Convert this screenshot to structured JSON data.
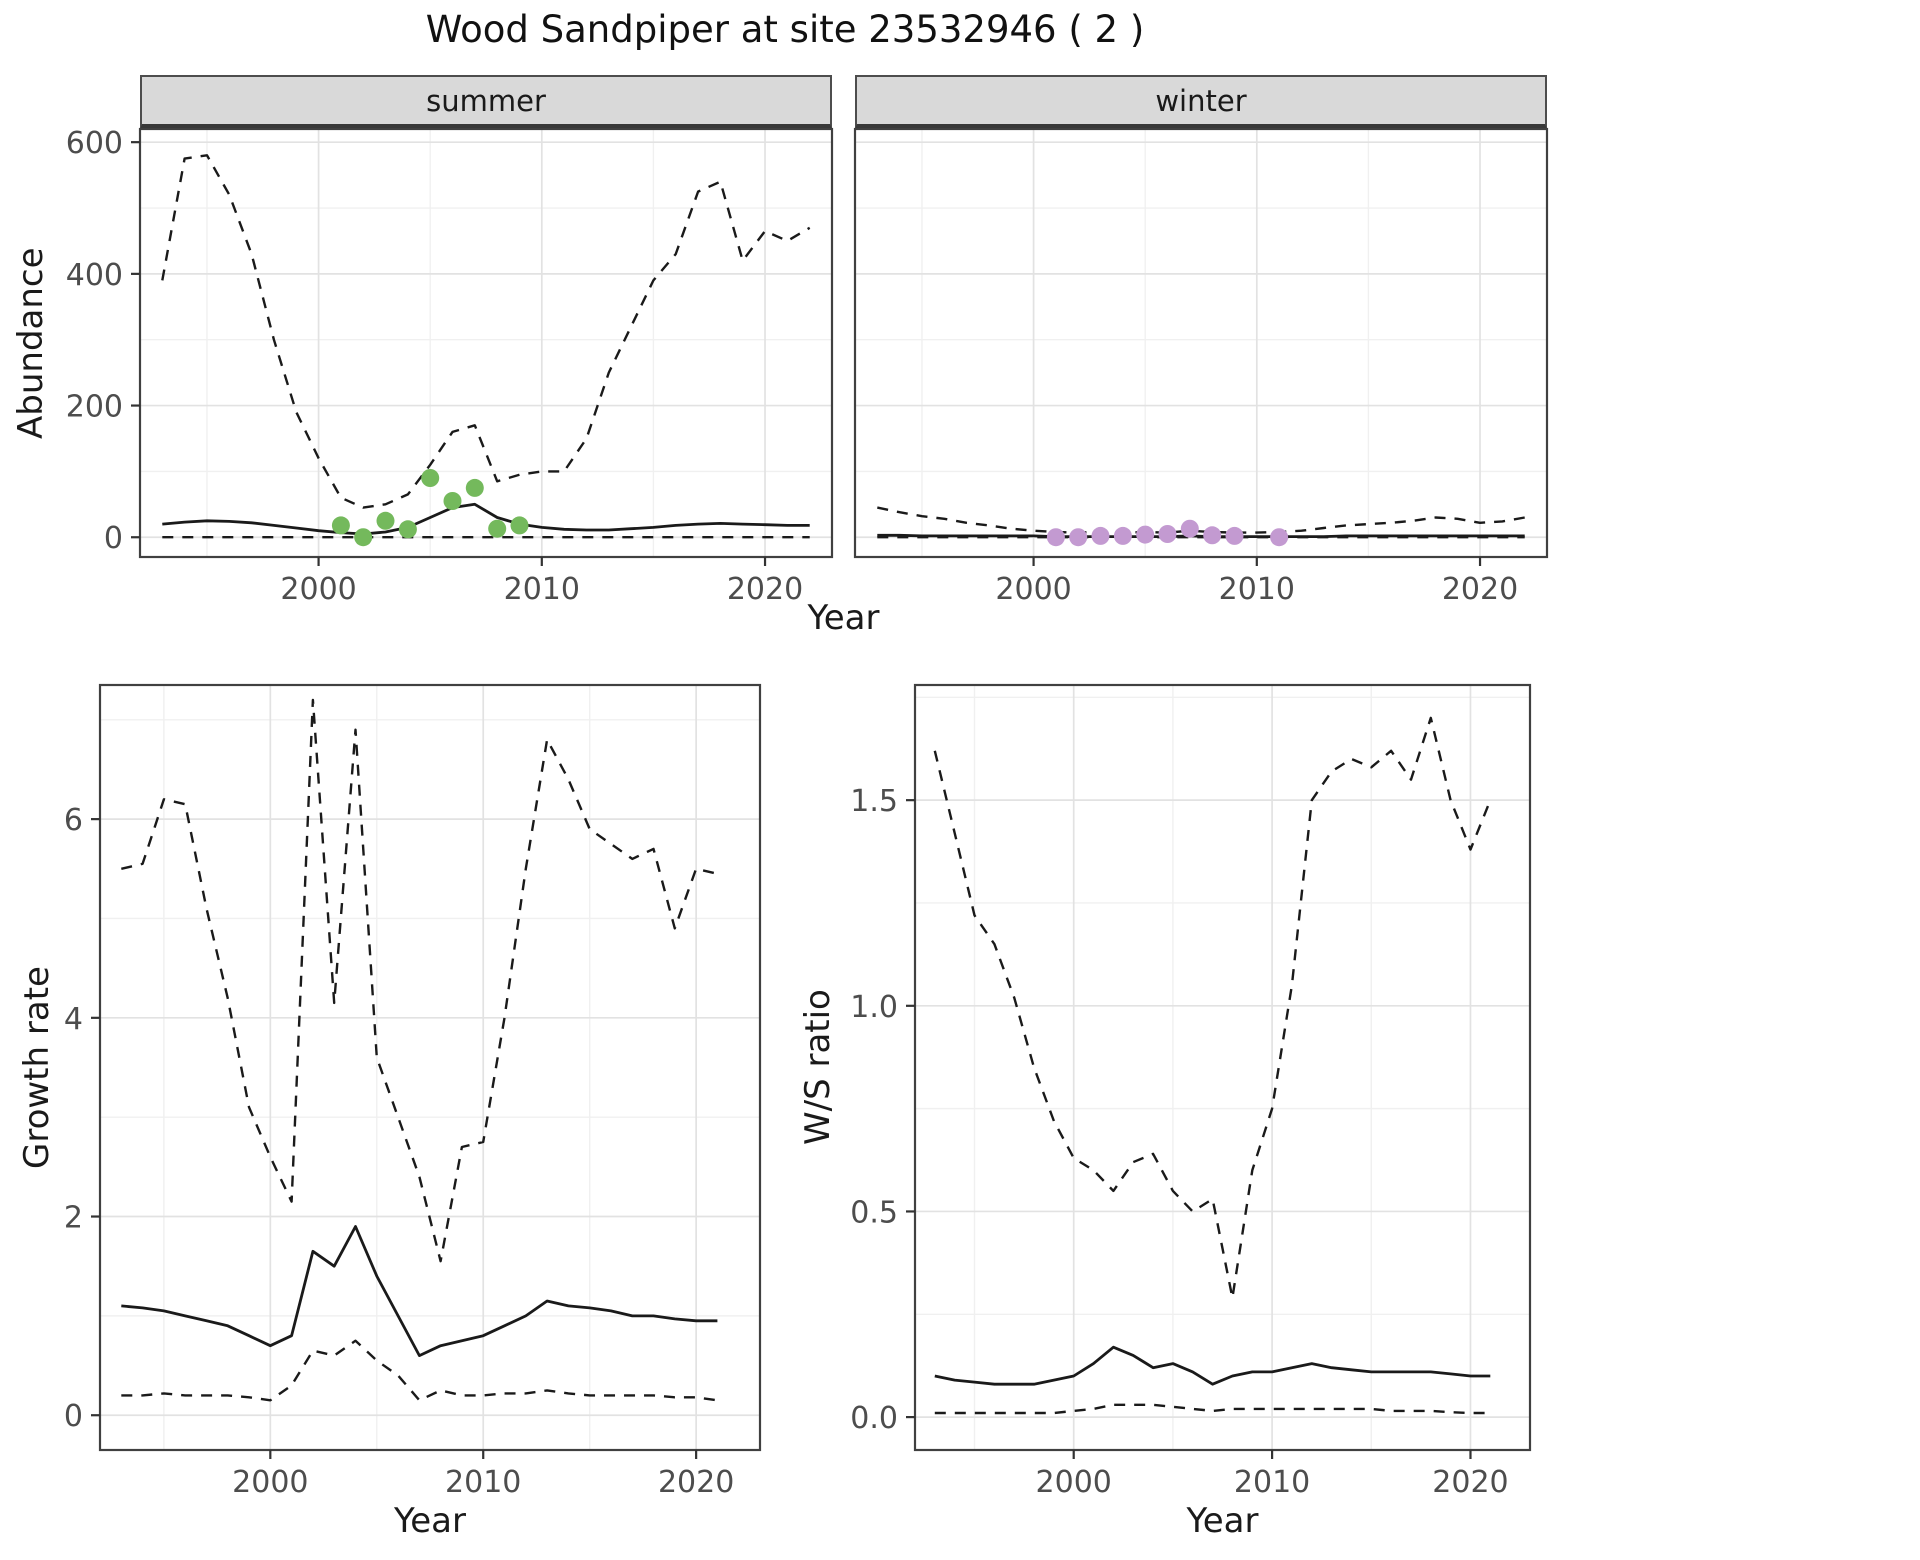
{
  "title": "Wood Sandpiper at site 23532946 ( 2 )",
  "colors": {
    "line": "#1a1a1a",
    "summer_points": "#74b95c",
    "winter_points": "#c39ad1",
    "grid_major": "#e2e2e2",
    "grid_minor": "#f0f0f0",
    "panel_border": "#404040",
    "tick_mark": "#333333",
    "tick_label": "#4d4d4d",
    "strip_bg": "#d9d9d9",
    "strip_rule": "#383838"
  },
  "chart_data": [
    {
      "id": "abundance-summer",
      "type": "line",
      "facet": "summer",
      "xlabel": "Year",
      "ylabel": "Abundance",
      "xlim": [
        1992,
        2023
      ],
      "ylim": [
        -30,
        620
      ],
      "xticks": [
        2000,
        2010,
        2020
      ],
      "xtick_labels": [
        "2000",
        "2010",
        "2020"
      ],
      "xticks_minor": [
        1995,
        2005,
        2015
      ],
      "yticks": [
        0,
        200,
        400,
        600
      ],
      "ytick_labels": [
        "0",
        "200",
        "400",
        "600"
      ],
      "yticks_minor": [
        100,
        300,
        500
      ],
      "show_y_labels": true,
      "grid": true,
      "legend": "none",
      "x": [
        1993,
        1994,
        1995,
        1996,
        1997,
        1998,
        1999,
        2000,
        2001,
        2002,
        2003,
        2004,
        2005,
        2006,
        2007,
        2008,
        2009,
        2010,
        2011,
        2012,
        2013,
        2014,
        2015,
        2016,
        2017,
        2018,
        2019,
        2020,
        2021,
        2022
      ],
      "series": [
        {
          "name": "upper-95ci",
          "style": "dashed",
          "values": [
            390,
            575,
            580,
            520,
            430,
            300,
            190,
            120,
            60,
            45,
            50,
            65,
            110,
            160,
            170,
            85,
            95,
            100,
            100,
            150,
            250,
            320,
            390,
            430,
            525,
            540,
            420,
            465,
            450,
            470
          ]
        },
        {
          "name": "median",
          "style": "solid",
          "values": [
            20,
            23,
            25,
            24,
            22,
            18,
            14,
            10,
            7,
            5,
            8,
            15,
            30,
            45,
            50,
            30,
            20,
            15,
            12,
            11,
            11,
            13,
            15,
            18,
            20,
            21,
            20,
            19,
            18,
            18
          ]
        },
        {
          "name": "lower-95ci",
          "style": "dashed",
          "values": [
            0,
            0,
            0,
            0,
            0,
            0,
            0,
            0,
            0,
            0,
            0,
            0,
            0,
            0,
            0,
            0,
            0,
            0,
            0,
            0,
            0,
            0,
            0,
            0,
            0,
            0,
            0,
            0,
            0,
            0
          ]
        }
      ],
      "points": {
        "name": "observed-counts",
        "color_key": "summer_points",
        "x": [
          2001,
          2002,
          2003,
          2004,
          2005,
          2006,
          2007,
          2008,
          2009
        ],
        "y": [
          18,
          0,
          25,
          12,
          90,
          55,
          75,
          13,
          18
        ]
      }
    },
    {
      "id": "abundance-winter",
      "type": "line",
      "facet": "winter",
      "xlabel": "Year",
      "ylabel": "Abundance",
      "xlim": [
        1992,
        2023
      ],
      "ylim": [
        -30,
        620
      ],
      "xticks": [
        2000,
        2010,
        2020
      ],
      "xtick_labels": [
        "2000",
        "2010",
        "2020"
      ],
      "xticks_minor": [
        1995,
        2005,
        2015
      ],
      "yticks": [
        0,
        200,
        400,
        600
      ],
      "ytick_labels": [
        "0",
        "200",
        "400",
        "600"
      ],
      "yticks_minor": [
        100,
        300,
        500
      ],
      "show_y_labels": false,
      "grid": true,
      "legend": "none",
      "x": [
        1993,
        1994,
        1995,
        1996,
        1997,
        1998,
        1999,
        2000,
        2001,
        2002,
        2003,
        2004,
        2005,
        2006,
        2007,
        2008,
        2009,
        2010,
        2011,
        2012,
        2013,
        2014,
        2015,
        2016,
        2017,
        2018,
        2019,
        2020,
        2021,
        2022
      ],
      "series": [
        {
          "name": "upper-95ci",
          "style": "dashed",
          "values": [
            45,
            38,
            32,
            28,
            22,
            18,
            13,
            10,
            8,
            7,
            8,
            7,
            8,
            7,
            10,
            8,
            7,
            7,
            8,
            10,
            14,
            18,
            20,
            22,
            25,
            30,
            28,
            22,
            24,
            30
          ]
        },
        {
          "name": "median",
          "style": "solid",
          "values": [
            3,
            3,
            2,
            2,
            2,
            2,
            2,
            2,
            1,
            1,
            1,
            1,
            1,
            1,
            2,
            1,
            1,
            1,
            1,
            1,
            1,
            2,
            2,
            2,
            2,
            2,
            2,
            2,
            2,
            2
          ]
        },
        {
          "name": "lower-95ci",
          "style": "dashed",
          "values": [
            0,
            0,
            0,
            0,
            0,
            0,
            0,
            0,
            0,
            0,
            0,
            0,
            0,
            0,
            0,
            0,
            0,
            0,
            0,
            0,
            0,
            0,
            0,
            0,
            0,
            0,
            0,
            0,
            0,
            0
          ]
        }
      ],
      "points": {
        "name": "observed-counts",
        "color_key": "winter_points",
        "x": [
          2001,
          2002,
          2003,
          2004,
          2005,
          2006,
          2007,
          2008,
          2009,
          2011
        ],
        "y": [
          0,
          0,
          2,
          2,
          4,
          5,
          13,
          3,
          2,
          0
        ]
      }
    },
    {
      "id": "growth-rate",
      "type": "line",
      "facet": null,
      "xlabel": "Year",
      "ylabel": "Growth rate",
      "xlim": [
        1992,
        2023
      ],
      "ylim": [
        -0.35,
        7.35
      ],
      "xticks": [
        2000,
        2010,
        2020
      ],
      "xtick_labels": [
        "2000",
        "2010",
        "2020"
      ],
      "xticks_minor": [
        1995,
        2005,
        2015
      ],
      "yticks": [
        0,
        2,
        4,
        6
      ],
      "ytick_labels": [
        "0",
        "2",
        "4",
        "6"
      ],
      "yticks_minor": [
        1,
        3,
        5,
        7
      ],
      "show_y_labels": true,
      "grid": true,
      "legend": "none",
      "x": [
        1993,
        1994,
        1995,
        1996,
        1997,
        1998,
        1999,
        2000,
        2001,
        2002,
        2003,
        2004,
        2005,
        2006,
        2007,
        2008,
        2009,
        2010,
        2011,
        2012,
        2013,
        2014,
        2015,
        2016,
        2017,
        2018,
        2019,
        2020,
        2021
      ],
      "series": [
        {
          "name": "upper-95ci",
          "style": "dashed",
          "values": [
            5.5,
            5.55,
            6.2,
            6.15,
            5.1,
            4.2,
            3.1,
            2.6,
            2.15,
            7.2,
            4.15,
            6.9,
            3.6,
            3.0,
            2.4,
            1.55,
            2.7,
            2.75,
            4.0,
            5.5,
            6.8,
            6.4,
            5.9,
            5.75,
            5.6,
            5.7,
            4.9,
            5.5,
            5.45
          ]
        },
        {
          "name": "median",
          "style": "solid",
          "values": [
            1.1,
            1.08,
            1.05,
            1.0,
            0.95,
            0.9,
            0.8,
            0.7,
            0.8,
            1.65,
            1.5,
            1.9,
            1.4,
            1.0,
            0.6,
            0.7,
            0.75,
            0.8,
            0.9,
            1.0,
            1.15,
            1.1,
            1.08,
            1.05,
            1.0,
            1.0,
            0.97,
            0.95,
            0.95
          ]
        },
        {
          "name": "lower-95ci",
          "style": "dashed",
          "values": [
            0.2,
            0.2,
            0.22,
            0.2,
            0.2,
            0.2,
            0.18,
            0.15,
            0.3,
            0.65,
            0.6,
            0.75,
            0.55,
            0.4,
            0.15,
            0.25,
            0.2,
            0.2,
            0.22,
            0.22,
            0.25,
            0.22,
            0.2,
            0.2,
            0.2,
            0.2,
            0.18,
            0.18,
            0.15
          ]
        }
      ],
      "points": null
    },
    {
      "id": "ws-ratio",
      "type": "line",
      "facet": null,
      "xlabel": "Year",
      "ylabel": "W/S ratio",
      "xlim": [
        1992,
        2023
      ],
      "ylim": [
        -0.08,
        1.78
      ],
      "xticks": [
        2000,
        2010,
        2020
      ],
      "xtick_labels": [
        "2000",
        "2010",
        "2020"
      ],
      "xticks_minor": [
        1995,
        2005,
        2015
      ],
      "yticks": [
        0,
        0.5,
        1.0,
        1.5
      ],
      "ytick_labels": [
        "0.0",
        "0.5",
        "1.0",
        "1.5"
      ],
      "yticks_minor": [
        0.25,
        0.75,
        1.25,
        1.75
      ],
      "show_y_labels": true,
      "grid": true,
      "legend": "none",
      "x": [
        1993,
        1994,
        1995,
        1996,
        1997,
        1998,
        1999,
        2000,
        2001,
        2002,
        2003,
        2004,
        2005,
        2006,
        2007,
        2008,
        2009,
        2010,
        2011,
        2012,
        2013,
        2014,
        2015,
        2016,
        2017,
        2018,
        2019,
        2020,
        2021
      ],
      "series": [
        {
          "name": "upper-95ci",
          "style": "dashed",
          "values": [
            1.62,
            1.42,
            1.22,
            1.15,
            1.02,
            0.85,
            0.72,
            0.63,
            0.6,
            0.55,
            0.62,
            0.64,
            0.55,
            0.5,
            0.53,
            0.29,
            0.6,
            0.75,
            1.05,
            1.5,
            1.57,
            1.6,
            1.58,
            1.62,
            1.55,
            1.7,
            1.5,
            1.38,
            1.5
          ]
        },
        {
          "name": "median",
          "style": "solid",
          "values": [
            0.1,
            0.09,
            0.085,
            0.08,
            0.08,
            0.08,
            0.09,
            0.1,
            0.13,
            0.17,
            0.15,
            0.12,
            0.13,
            0.11,
            0.08,
            0.1,
            0.11,
            0.11,
            0.12,
            0.13,
            0.12,
            0.115,
            0.11,
            0.11,
            0.11,
            0.11,
            0.105,
            0.1,
            0.1
          ]
        },
        {
          "name": "lower-95ci",
          "style": "dashed",
          "values": [
            0.01,
            0.01,
            0.01,
            0.01,
            0.01,
            0.01,
            0.01,
            0.015,
            0.02,
            0.03,
            0.03,
            0.03,
            0.025,
            0.02,
            0.015,
            0.02,
            0.02,
            0.02,
            0.02,
            0.02,
            0.02,
            0.02,
            0.02,
            0.015,
            0.015,
            0.015,
            0.012,
            0.01,
            0.01
          ]
        }
      ],
      "points": null
    }
  ]
}
